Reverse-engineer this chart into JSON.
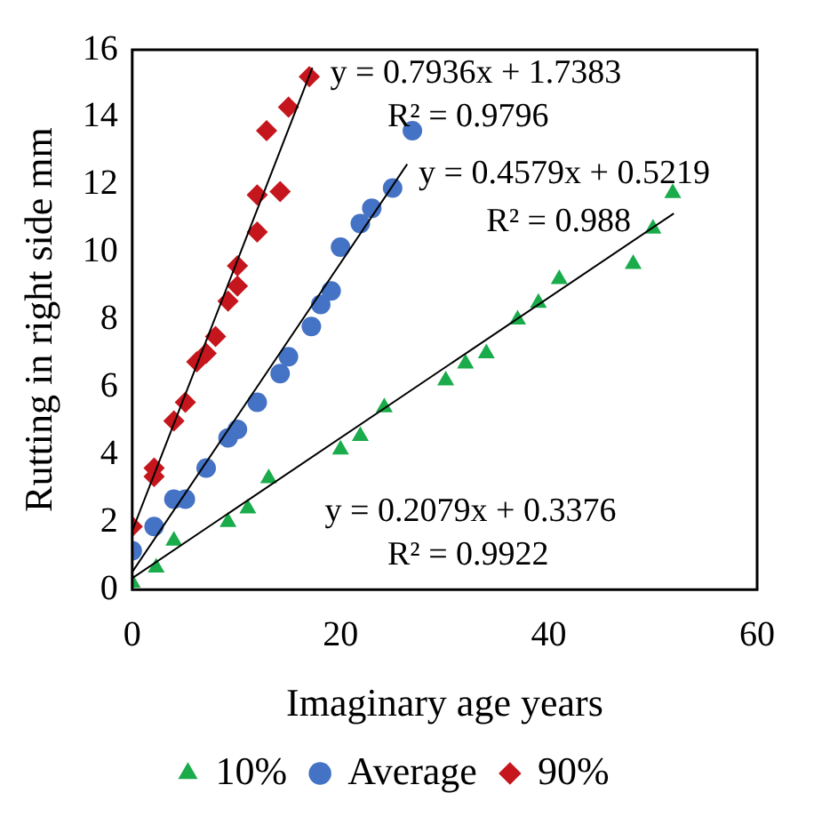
{
  "chart_data": {
    "type": "scatter",
    "xlabel": "Imaginary age years",
    "ylabel": "Rutting in right side mm",
    "xlim": [
      0,
      60
    ],
    "xticks": [
      0,
      20,
      40,
      60
    ],
    "ylim": [
      0,
      16
    ],
    "yticks": [
      0,
      2,
      4,
      6,
      8,
      10,
      12,
      14,
      16
    ],
    "grid": false,
    "legend": "bottom",
    "series": [
      {
        "name": "10%",
        "color": "#1aab4b",
        "marker": "triangle",
        "x": [
          0,
          2.3,
          4,
          9.2,
          11.1,
          13.1,
          20,
          21.9,
          24.2,
          30.1,
          32,
          34,
          37,
          39,
          41,
          48.1,
          50,
          51.9
        ],
        "values": [
          0.2,
          0.65,
          1.45,
          2.0,
          2.4,
          3.3,
          4.15,
          4.55,
          5.4,
          6.2,
          6.7,
          7.0,
          8.0,
          8.5,
          9.2,
          9.65,
          10.7,
          11.75
        ]
      },
      {
        "name": "Average",
        "color": "#4472c4",
        "marker": "circle",
        "x": [
          0,
          2.1,
          4,
          5.1,
          7.1,
          9.2,
          10.1,
          12,
          14.2,
          15,
          17.2,
          18.1,
          19.1,
          20,
          21.9,
          23,
          25,
          26.9
        ],
        "values": [
          1.15,
          1.87,
          2.68,
          2.68,
          3.6,
          4.5,
          4.75,
          5.55,
          6.4,
          6.9,
          7.8,
          8.45,
          8.85,
          10.15,
          10.85,
          11.3,
          11.9,
          13.6
        ]
      },
      {
        "name": "90%",
        "color": "#c5161d",
        "marker": "diamond",
        "x": [
          0,
          2.1,
          2.1,
          4,
          5.1,
          6.2,
          7.1,
          8,
          9.2,
          10.1,
          10.1,
          12,
          12,
          14.2,
          12.9,
          15,
          17
        ],
        "values": [
          1.87,
          3.6,
          3.35,
          5.0,
          5.55,
          6.75,
          7.0,
          7.5,
          8.55,
          9.0,
          9.6,
          10.6,
          11.7,
          11.8,
          13.6,
          14.3,
          15.2
        ]
      },
      {
        "type": "line",
        "color": "#000000",
        "marker": "none",
        "x": [
          0,
          52
        ],
        "values": [
          0.34,
          11.15
        ]
      },
      {
        "type": "line",
        "color": "#000000",
        "marker": "none",
        "x": [
          0,
          26.4
        ],
        "values": [
          0.52,
          12.61
        ]
      },
      {
        "type": "line",
        "color": "#000000",
        "marker": "none",
        "x": [
          0,
          17.3
        ],
        "values": [
          1.74,
          15.47
        ]
      }
    ],
    "annotations": [
      "y = 0.7936x + 1.7383",
      "R² = 0.9796",
      "y = 0.4579x + 0.5219",
      "R² = 0.988",
      "y = 0.2079x + 0.3376",
      "R² = 0.9922"
    ]
  }
}
